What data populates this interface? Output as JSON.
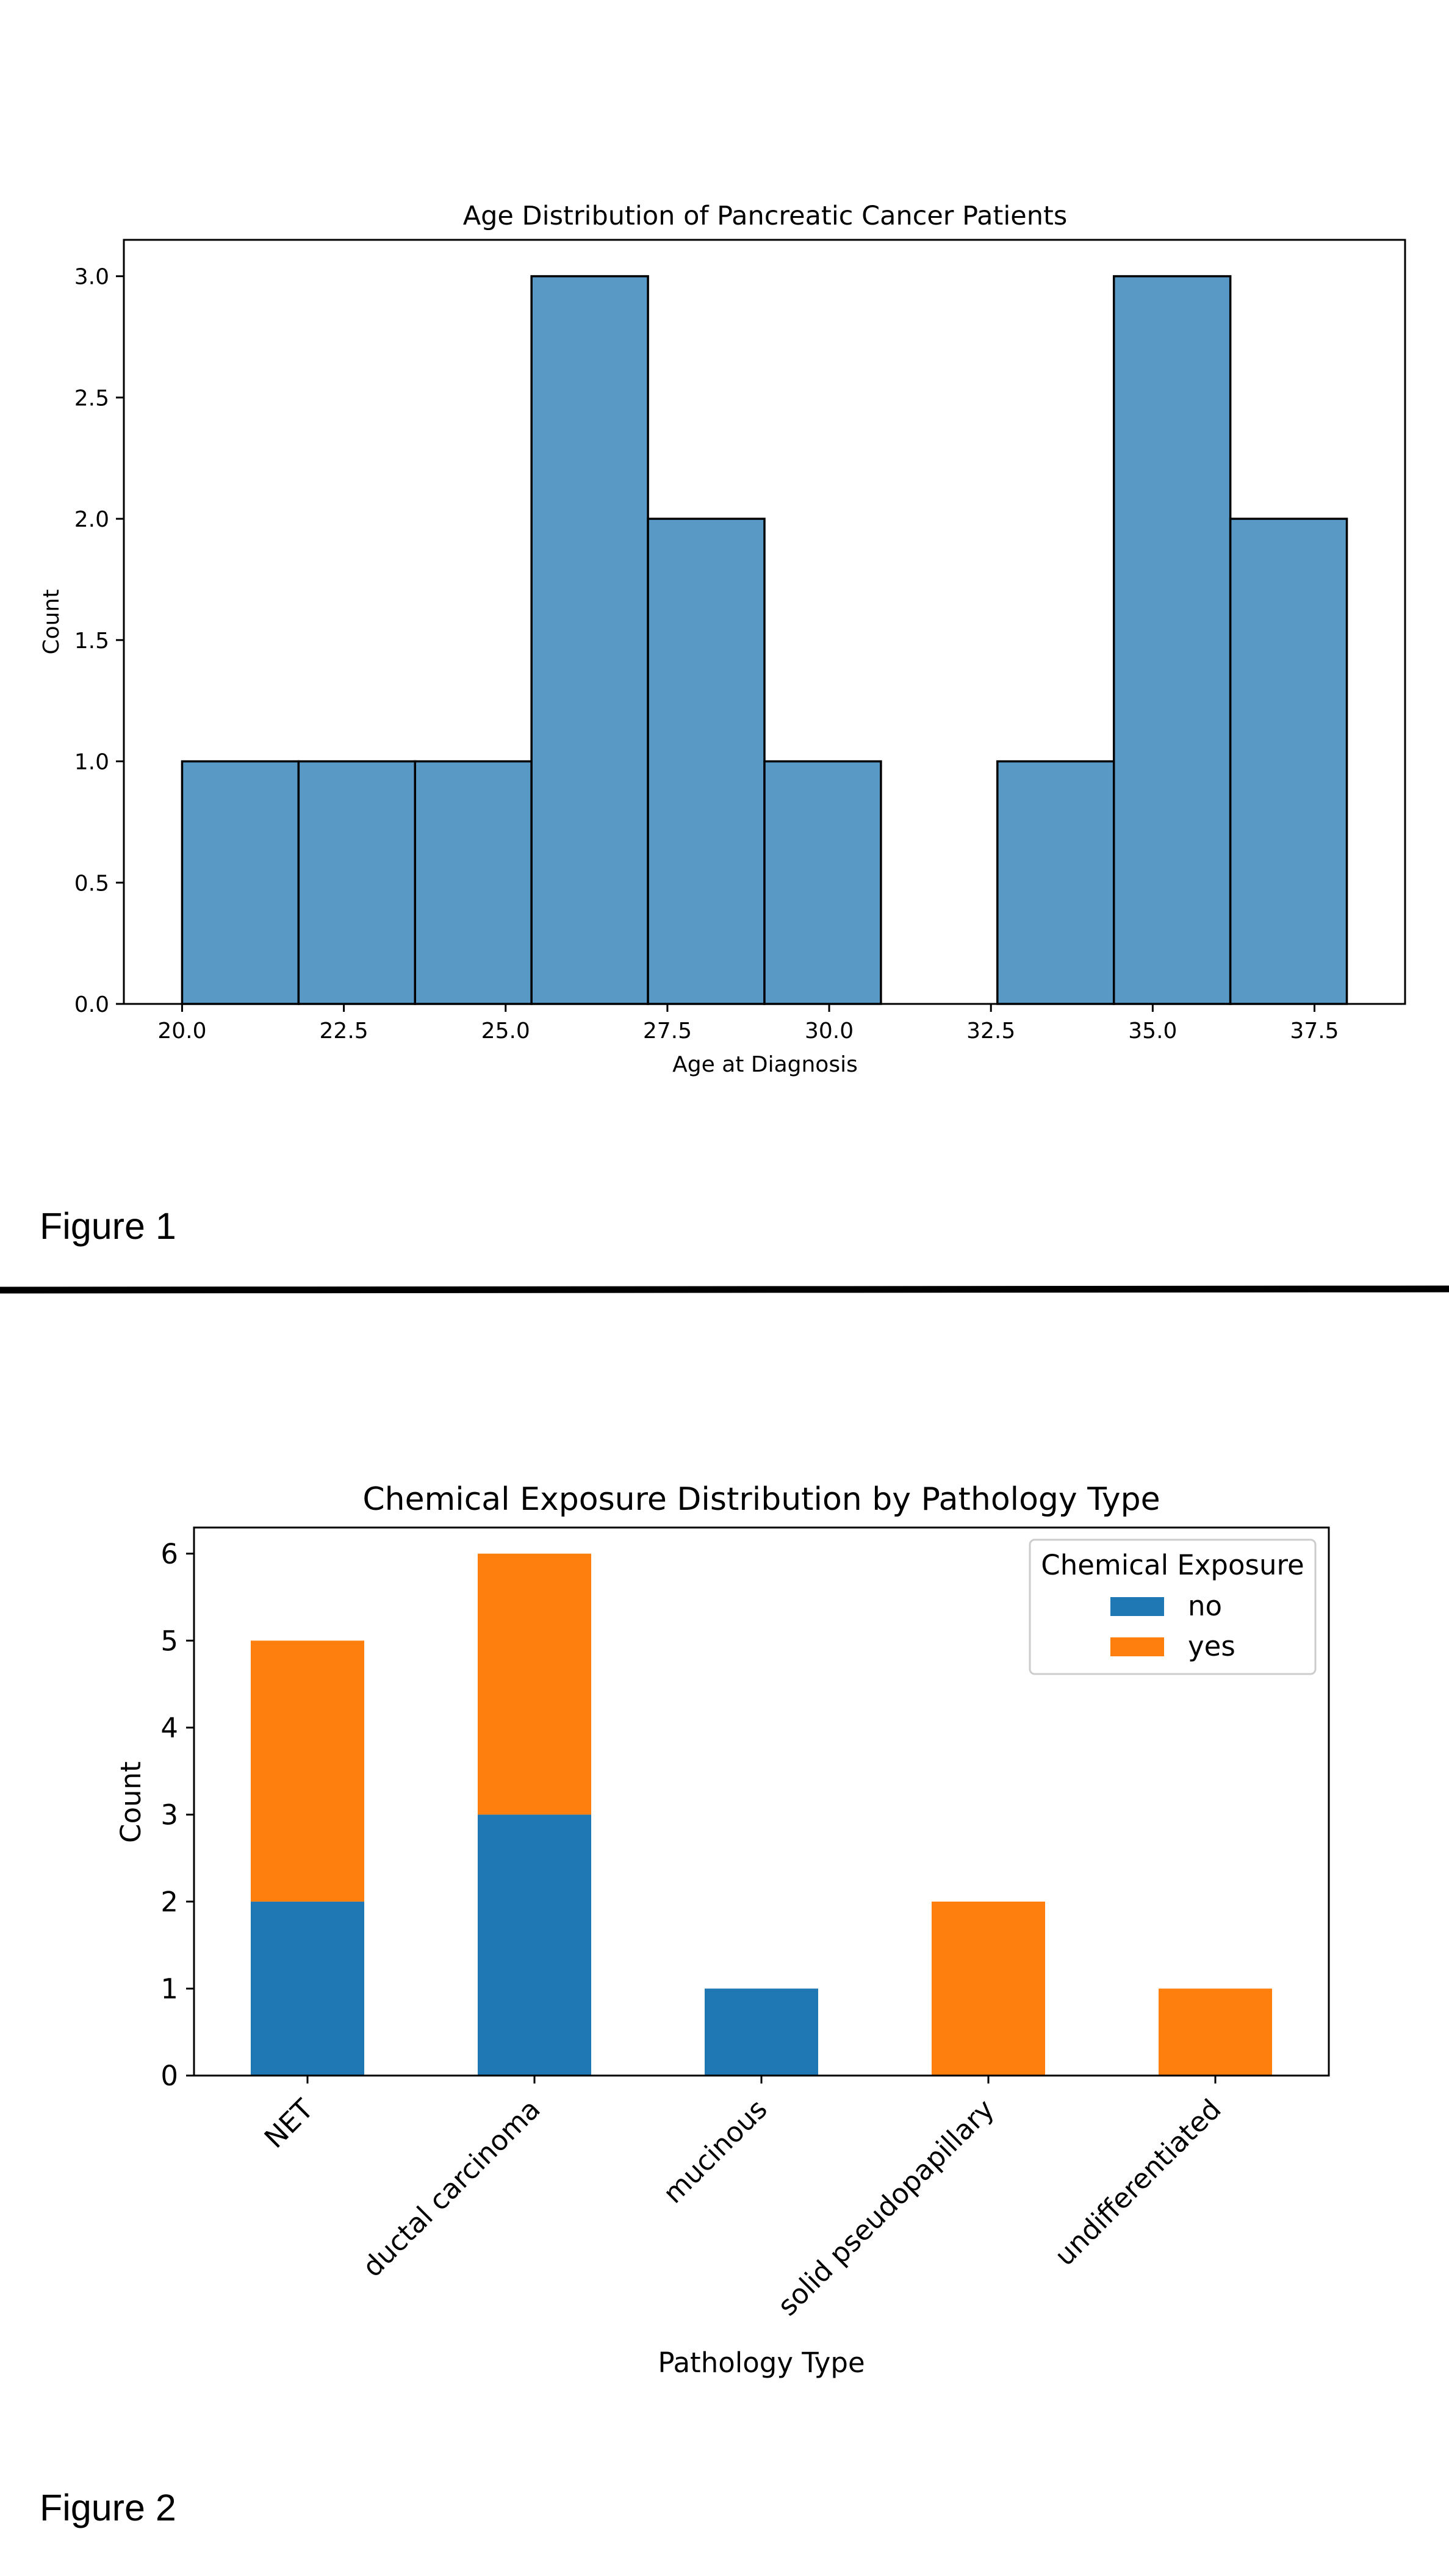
{
  "figure1_caption": "Figure 1",
  "figure2_caption": "Figure 2",
  "chart_data": [
    {
      "type": "bar",
      "title": "Age Distribution of Pancreatic Cancer Patients",
      "xlabel": "Age at Diagnosis",
      "ylabel": "Count",
      "xlim": [
        19.1,
        38.9
      ],
      "ylim": [
        0,
        3.15
      ],
      "xticks": [
        "20.0",
        "22.5",
        "25.0",
        "27.5",
        "30.0",
        "32.5",
        "35.0",
        "37.5"
      ],
      "xtick_values": [
        20.0,
        22.5,
        25.0,
        27.5,
        30.0,
        32.5,
        35.0,
        37.5
      ],
      "yticks": [
        "0.0",
        "0.5",
        "1.0",
        "1.5",
        "2.0",
        "2.5",
        "3.0"
      ],
      "ytick_values": [
        0,
        0.5,
        1.0,
        1.5,
        2.0,
        2.5,
        3.0
      ],
      "bins": [
        {
          "x0": 20.0,
          "x1": 21.8,
          "count": 1
        },
        {
          "x0": 21.8,
          "x1": 23.6,
          "count": 1
        },
        {
          "x0": 23.6,
          "x1": 25.4,
          "count": 1
        },
        {
          "x0": 25.4,
          "x1": 27.2,
          "count": 3
        },
        {
          "x0": 27.2,
          "x1": 29.0,
          "count": 2
        },
        {
          "x0": 29.0,
          "x1": 30.8,
          "count": 1
        },
        {
          "x0": 30.8,
          "x1": 32.6,
          "count": 0
        },
        {
          "x0": 32.6,
          "x1": 34.4,
          "count": 1
        },
        {
          "x0": 34.4,
          "x1": 36.2,
          "count": 3
        },
        {
          "x0": 36.2,
          "x1": 38.0,
          "count": 2
        }
      ],
      "bar_color": "#5899c6",
      "grid": false
    },
    {
      "type": "bar",
      "stacked": true,
      "title": "Chemical Exposure Distribution by Pathology Type",
      "xlabel": "Pathology Type",
      "ylabel": "Count",
      "ylim": [
        0,
        6.3
      ],
      "yticks": [
        "0",
        "1",
        "2",
        "3",
        "4",
        "5",
        "6"
      ],
      "ytick_values": [
        0,
        1,
        2,
        3,
        4,
        5,
        6
      ],
      "categories": [
        "NET",
        "ductal carcinoma",
        "mucinous",
        "solid pseudopapillary",
        "undifferentiated"
      ],
      "legend_title": "Chemical Exposure",
      "legend_position": "top-right",
      "series": [
        {
          "name": "no",
          "values": [
            2,
            3,
            1,
            0,
            0
          ],
          "color": "#1f77b4"
        },
        {
          "name": "yes",
          "values": [
            3,
            3,
            0,
            2,
            1
          ],
          "color": "#ff7f0e"
        }
      ],
      "grid": false
    }
  ]
}
